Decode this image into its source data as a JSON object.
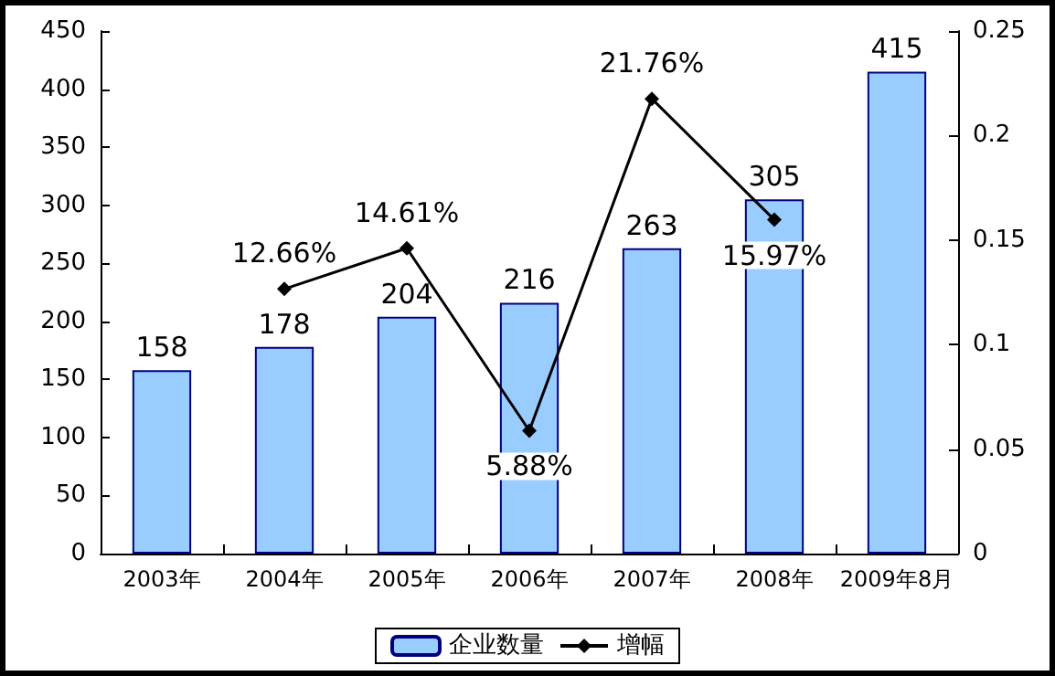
{
  "chart_data": {
    "type": "bar",
    "categories": [
      "2003年",
      "2004年",
      "2005年",
      "2006年",
      "2007年",
      "2008年",
      "2009年8月"
    ],
    "series": [
      {
        "name": "企业数量",
        "color": "#99ccff",
        "values": [
          158,
          178,
          204,
          216,
          263,
          305,
          415
        ],
        "value_labels": [
          "158",
          "178",
          "204",
          "216",
          "263",
          "305",
          "415"
        ]
      },
      {
        "name": "增幅",
        "type": "line",
        "axis": "y2",
        "color": "#000000",
        "marker": "diamond",
        "values": [
          null,
          0.1266,
          0.1461,
          0.0588,
          0.2176,
          0.1597,
          null
        ],
        "value_labels": [
          null,
          "12.66%",
          "14.61%",
          "5.88%",
          "21.76%",
          "15.97%",
          null
        ]
      }
    ],
    "ylim": [
      0,
      450
    ],
    "yticks": [
      0,
      50,
      100,
      150,
      200,
      250,
      300,
      350,
      400,
      450
    ],
    "y2lim": [
      0,
      0.25
    ],
    "y2ticks": [
      0,
      0.05,
      0.1,
      0.15,
      0.2,
      0.25
    ],
    "grid": false,
    "legend": "bottom"
  }
}
